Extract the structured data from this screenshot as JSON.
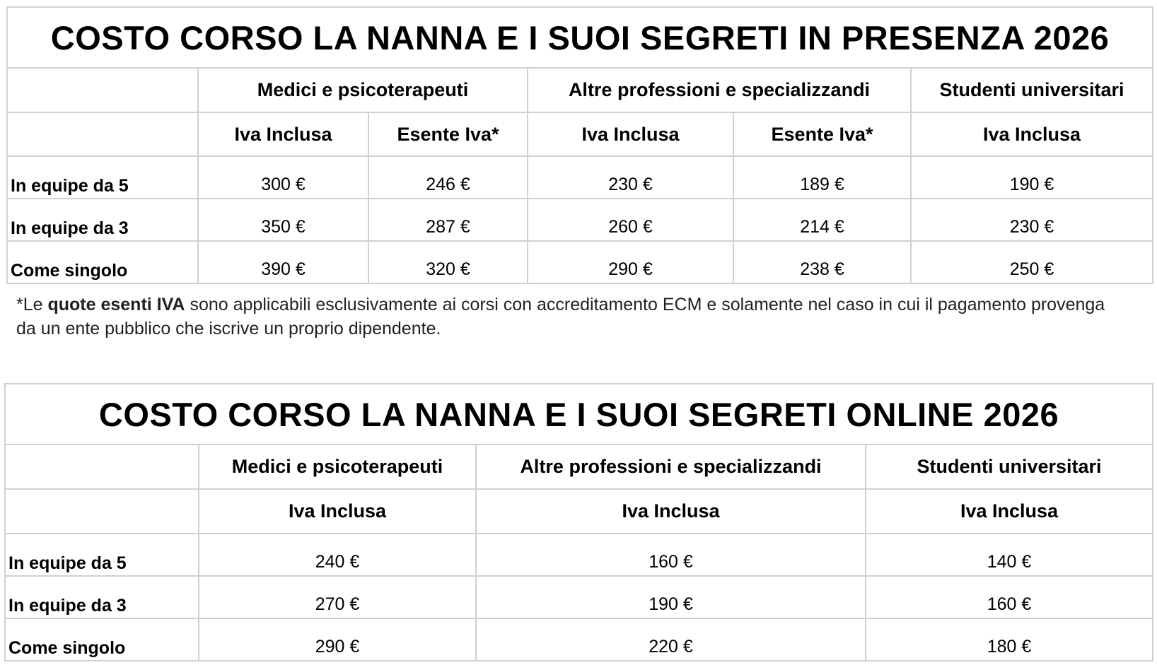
{
  "presenza": {
    "title": "COSTO CORSO LA NANNA E I SUOI SEGRETI IN PRESENZA 2026",
    "groups": [
      "Medici e psicoterapeuti",
      "Altre professioni e specializzandi",
      "Studenti universitari"
    ],
    "subheaders": [
      "Iva Inclusa",
      "Esente Iva*",
      "Iva Inclusa",
      "Esente Iva*",
      "Iva Inclusa"
    ],
    "rows": [
      {
        "label": "In equipe da 5",
        "values": [
          "300 €",
          "246 €",
          "230 €",
          "189 €",
          "190 €"
        ]
      },
      {
        "label": "In equipe da 3",
        "values": [
          "350 €",
          "287 €",
          "260 €",
          "214 €",
          "230 €"
        ]
      },
      {
        "label": "Come singolo",
        "values": [
          "390 €",
          "320 €",
          "290 €",
          "238 €",
          "250 €"
        ]
      }
    ]
  },
  "note": {
    "prefix": "*Le ",
    "bold": "quote esenti IVA",
    "rest": " sono applicabili esclusivamente ai corsi con accreditamento ECM e solamente nel caso in cui il pagamento provenga da un ente pubblico che iscrive un proprio dipendente."
  },
  "online": {
    "title": "COSTO CORSO LA NANNA E I SUOI SEGRETI ONLINE 2026",
    "groups": [
      "Medici e psicoterapeuti",
      "Altre professioni e specializzandi",
      "Studenti universitari"
    ],
    "subheaders": [
      "Iva Inclusa",
      "Iva Inclusa",
      "Iva Inclusa"
    ],
    "rows": [
      {
        "label": "In equipe da 5",
        "values": [
          "240 €",
          "160 €",
          "140 €"
        ]
      },
      {
        "label": "In equipe da 3",
        "values": [
          "270 €",
          "190 €",
          "160 €"
        ]
      },
      {
        "label": "Come singolo",
        "values": [
          "290 €",
          "220 €",
          "180 €"
        ]
      }
    ]
  }
}
